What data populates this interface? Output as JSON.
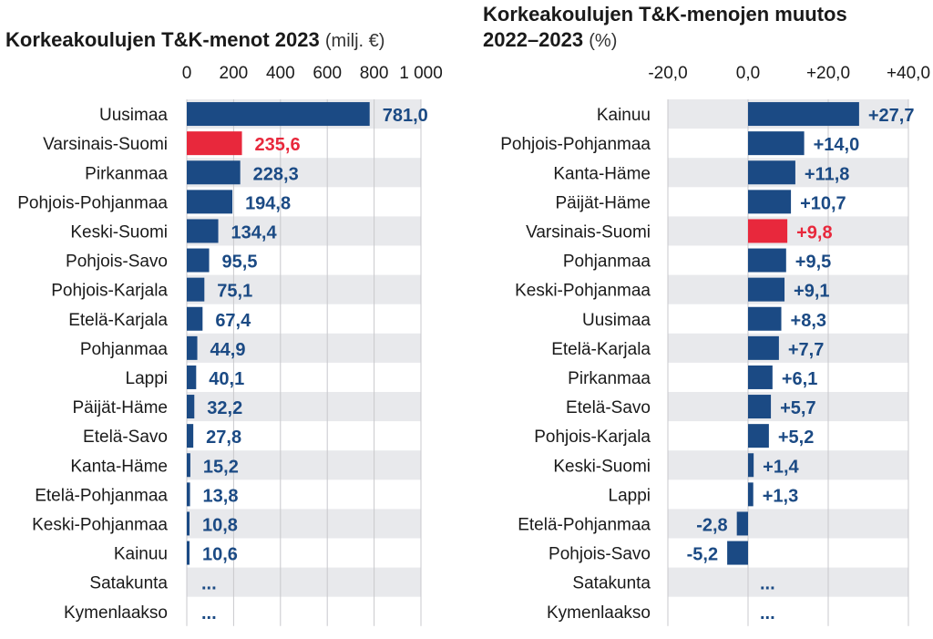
{
  "colors": {
    "bar": "#1b4a84",
    "highlight": "#e8283c",
    "band": "#e8e9ec",
    "grid": "#c8c8cc"
  },
  "chart_data": [
    {
      "type": "bar",
      "orientation": "horizontal",
      "title": "Korkeakoulujen T&K-menot 2023",
      "unit": "(milj. €)",
      "xlim": [
        0,
        1000
      ],
      "ticks": [
        0,
        200,
        400,
        600,
        800,
        1000
      ],
      "tick_labels": [
        "0",
        "200",
        "400",
        "600",
        "800",
        "1 000"
      ],
      "highlight": "Varsinais-Suomi",
      "categories": [
        "Uusimaa",
        "Varsinais-Suomi",
        "Pirkanmaa",
        "Pohjois-Pohjanmaa",
        "Keski-Suomi",
        "Pohjois-Savo",
        "Pohjois-Karjala",
        "Etelä-Karjala",
        "Pohjanmaa",
        "Lappi",
        "Päijät-Häme",
        "Etelä-Savo",
        "Kanta-Häme",
        "Etelä-Pohjanmaa",
        "Keski-Pohjanmaa",
        "Kainuu",
        "Satakunta",
        "Kymenlaakso"
      ],
      "values": [
        781.0,
        235.6,
        228.3,
        194.8,
        134.4,
        95.5,
        75.1,
        67.4,
        44.9,
        40.1,
        32.2,
        27.8,
        15.2,
        13.8,
        10.8,
        10.6,
        null,
        null
      ],
      "value_labels": [
        "781,0",
        "235,6",
        "228,3",
        "194,8",
        "134,4",
        "95,5",
        "75,1",
        "67,4",
        "44,9",
        "40,1",
        "32,2",
        "27,8",
        "15,2",
        "13,8",
        "10,8",
        "10,6",
        "...",
        "..."
      ]
    },
    {
      "type": "bar",
      "orientation": "horizontal",
      "title": "Korkeakoulujen T&K-menojen muutos 2022–2023",
      "title_line1": "Korkeakoulujen T&K-menojen muutos",
      "title_line2": "2022–2023",
      "unit": "(%)",
      "xlim": [
        -20,
        40
      ],
      "ticks": [
        -20,
        0,
        20,
        40
      ],
      "tick_labels": [
        "-20,0",
        "0,0",
        "+20,0",
        "+40,0"
      ],
      "highlight": "Varsinais-Suomi",
      "categories": [
        "Kainuu",
        "Pohjois-Pohjanmaa",
        "Kanta-Häme",
        "Päijät-Häme",
        "Varsinais-Suomi",
        "Pohjanmaa",
        "Keski-Pohjanmaa",
        "Uusimaa",
        "Etelä-Karjala",
        "Pirkanmaa",
        "Etelä-Savo",
        "Pohjois-Karjala",
        "Keski-Suomi",
        "Lappi",
        "Etelä-Pohjanmaa",
        "Pohjois-Savo",
        "Satakunta",
        "Kymenlaakso"
      ],
      "values": [
        27.7,
        14.0,
        11.8,
        10.7,
        9.8,
        9.5,
        9.1,
        8.3,
        7.7,
        6.1,
        5.7,
        5.2,
        1.4,
        1.3,
        -2.8,
        -5.2,
        null,
        null
      ],
      "value_labels": [
        "+27,7",
        "+14,0",
        "+11,8",
        "+10,7",
        "+9,8",
        "+9,5",
        "+9,1",
        "+8,3",
        "+7,7",
        "+6,1",
        "+5,7",
        "+5,2",
        "+1,4",
        "+1,3",
        "-2,8",
        "-5,2",
        "...",
        "..."
      ]
    }
  ]
}
